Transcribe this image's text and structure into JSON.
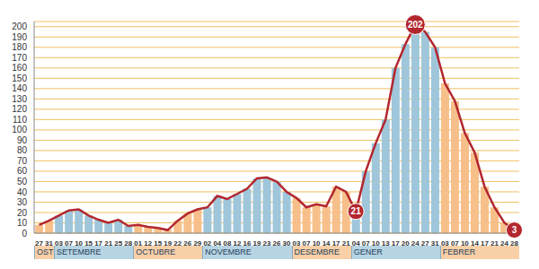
{
  "chart_data": {
    "type": "bar",
    "grid": true,
    "ylim": [
      0,
      205
    ],
    "yticks": [
      0,
      10,
      20,
      30,
      40,
      50,
      60,
      70,
      80,
      90,
      100,
      110,
      120,
      130,
      140,
      150,
      160,
      170,
      180,
      190,
      200
    ],
    "groups": [
      {
        "label": "OST",
        "color": "#f7c08a",
        "categories": [
          "27",
          "31"
        ]
      },
      {
        "label": "SETEMBRE",
        "color": "#9fc6da",
        "categories": [
          "03",
          "07",
          "10",
          "15",
          "17",
          "21",
          "25",
          "28"
        ]
      },
      {
        "label": "OCTUBRE",
        "color": "#f7c08a",
        "categories": [
          "01",
          "12",
          "15",
          "19",
          "22",
          "26",
          "29"
        ]
      },
      {
        "label": "NOVEMBRE",
        "color": "#9fc6da",
        "categories": [
          "02",
          "04",
          "08",
          "12",
          "16",
          "19",
          "23",
          "26",
          "30"
        ]
      },
      {
        "label": "DESEMBRE",
        "color": "#f7c08a",
        "categories": [
          "03",
          "07",
          "10",
          "14",
          "17",
          "21"
        ]
      },
      {
        "label": "GENER",
        "color": "#9fc6da",
        "categories": [
          "04",
          "07",
          "10",
          "13",
          "17",
          "20",
          "24",
          "27",
          "31"
        ]
      },
      {
        "label": "FEBRER",
        "color": "#f7c08a",
        "categories": [
          "03",
          "07",
          "10",
          "14",
          "17",
          "21",
          "24",
          "28"
        ]
      }
    ],
    "series": [
      {
        "type": "bar",
        "values": [
          8,
          12,
          17,
          22,
          23,
          17,
          13,
          10,
          13,
          7,
          8,
          6,
          5,
          3,
          12,
          19,
          23,
          25,
          36,
          33,
          38,
          43,
          53,
          54,
          50,
          40,
          34,
          25,
          28,
          26,
          45,
          40,
          21,
          60,
          87,
          110,
          160,
          183,
          202,
          195,
          180,
          145,
          128,
          97,
          78,
          45,
          25,
          10,
          3
        ]
      },
      {
        "type": "line",
        "color": "#b3262e",
        "values": [
          8,
          12,
          17,
          22,
          23,
          17,
          13,
          10,
          13,
          7,
          8,
          6,
          5,
          3,
          12,
          19,
          23,
          25,
          36,
          33,
          38,
          43,
          53,
          54,
          50,
          40,
          34,
          25,
          28,
          26,
          45,
          40,
          21,
          60,
          87,
          110,
          160,
          183,
          202,
          195,
          180,
          145,
          128,
          97,
          78,
          45,
          25,
          10,
          3
        ],
        "value_labels": [
          null,
          null,
          null,
          null,
          null,
          null,
          null,
          null,
          null,
          null,
          null,
          null,
          null,
          null,
          null,
          null,
          null,
          null,
          null,
          null,
          null,
          null,
          null,
          null,
          null,
          null,
          null,
          null,
          null,
          null,
          null,
          null,
          "21",
          null,
          null,
          null,
          null,
          null,
          "202",
          null,
          null,
          null,
          null,
          null,
          null,
          null,
          null,
          null,
          "3"
        ]
      }
    ]
  }
}
